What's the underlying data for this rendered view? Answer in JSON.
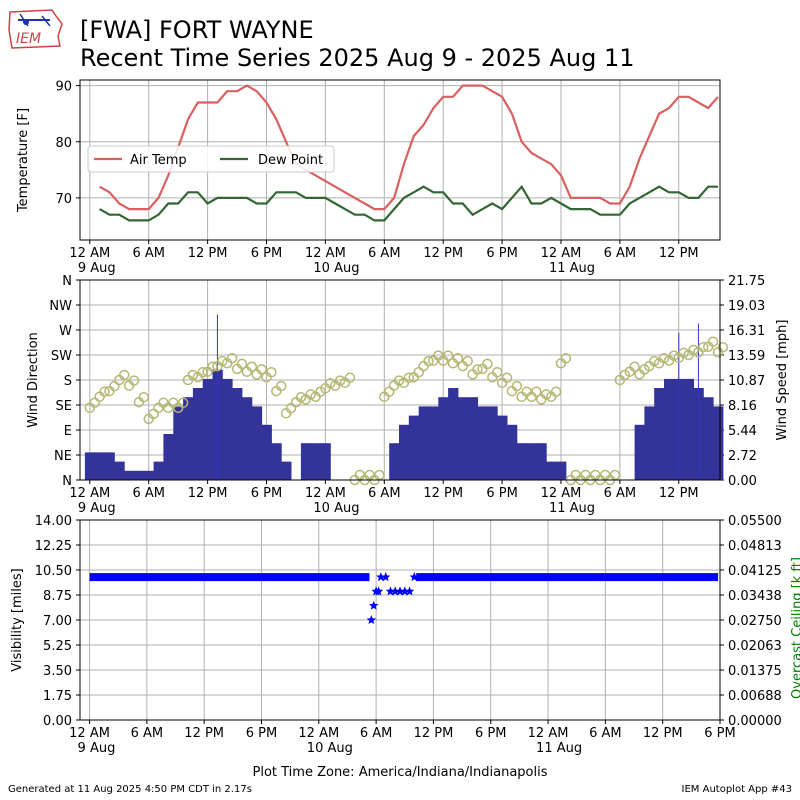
{
  "header": {
    "logo_text": "IEM",
    "title_line1": "[FWA] FORT WAYNE",
    "title_line2": "Recent Time Series 2025 Aug 9 - 2025 Aug 11"
  },
  "footer": {
    "generated": "Generated at 11 Aug 2025 4:50 PM CDT in 2.17s",
    "app": "IEM Autoplot App #43"
  },
  "xaxis_top": {
    "range_hours": [
      -1,
      64.2
    ],
    "ticks": [
      {
        "h": 0,
        "label": "12 AM",
        "sub": "9 Aug"
      },
      {
        "h": 6,
        "label": "6 AM",
        "sub": ""
      },
      {
        "h": 12,
        "label": "12 PM",
        "sub": ""
      },
      {
        "h": 18,
        "label": "6 PM",
        "sub": ""
      },
      {
        "h": 24,
        "label": "12 AM",
        "sub": "10 Aug"
      },
      {
        "h": 30,
        "label": "6 AM",
        "sub": ""
      },
      {
        "h": 36,
        "label": "12 PM",
        "sub": ""
      },
      {
        "h": 42,
        "label": "6 PM",
        "sub": ""
      },
      {
        "h": 48,
        "label": "12 AM",
        "sub": "11 Aug"
      },
      {
        "h": 54,
        "label": "6 AM",
        "sub": ""
      },
      {
        "h": 60,
        "label": "12 PM",
        "sub": ""
      }
    ]
  },
  "xaxis_bottom": {
    "range_hours": [
      -1,
      66
    ],
    "xlabel": "Plot Time Zone: America/Indiana/Indianapolis",
    "ticks": [
      {
        "h": 0,
        "label": "12 AM",
        "sub": "9 Aug"
      },
      {
        "h": 6,
        "label": "6 AM",
        "sub": ""
      },
      {
        "h": 12,
        "label": "12 PM",
        "sub": ""
      },
      {
        "h": 18,
        "label": "6 PM",
        "sub": ""
      },
      {
        "h": 24,
        "label": "12 AM",
        "sub": "10 Aug"
      },
      {
        "h": 30,
        "label": "6 AM",
        "sub": ""
      },
      {
        "h": 36,
        "label": "12 PM",
        "sub": ""
      },
      {
        "h": 42,
        "label": "6 PM",
        "sub": ""
      },
      {
        "h": 48,
        "label": "12 AM",
        "sub": "11 Aug"
      },
      {
        "h": 54,
        "label": "6 AM",
        "sub": ""
      },
      {
        "h": 60,
        "label": "12 PM",
        "sub": ""
      },
      {
        "h": 66,
        "label": "6 PM",
        "sub": ""
      }
    ]
  },
  "chart_data": [
    {
      "type": "line",
      "ylabel": "Temperature [F]",
      "ylim": [
        62.5,
        91
      ],
      "yticks": [
        70,
        80,
        90
      ],
      "grid": true,
      "legend_position": "center-left",
      "series": [
        {
          "name": "Air Temp",
          "color": "#d9605f",
          "x": [
            1,
            2,
            3,
            4,
            5,
            6,
            7,
            8,
            9,
            10,
            11,
            12,
            13,
            14,
            15,
            16,
            17,
            18,
            19,
            20,
            21,
            22,
            23,
            24,
            25,
            26,
            27,
            28,
            29,
            30,
            31,
            32,
            33,
            34,
            35,
            36,
            37,
            38,
            39,
            40,
            41,
            42,
            43,
            44,
            45,
            46,
            47,
            48,
            49,
            50,
            51,
            52,
            53,
            54,
            55,
            56,
            57,
            58,
            59,
            60,
            61,
            62,
            63,
            64
          ],
          "y": [
            72,
            71,
            69,
            68,
            68,
            68,
            70,
            74,
            79,
            84,
            87,
            87,
            87,
            89,
            89,
            90,
            89,
            87,
            84,
            80,
            76,
            75,
            74,
            73,
            72,
            71,
            70,
            69,
            68,
            68,
            70,
            76,
            81,
            83,
            86,
            88,
            88,
            90,
            90,
            90,
            89,
            88,
            85,
            80,
            78,
            77,
            76,
            74,
            70,
            70,
            70,
            70,
            69,
            69,
            72,
            77,
            81,
            85,
            86,
            88,
            88,
            87,
            86,
            88
          ]
        },
        {
          "name": "Dew Point",
          "color": "#336633",
          "x": [
            1,
            2,
            3,
            4,
            5,
            6,
            7,
            8,
            9,
            10,
            11,
            12,
            13,
            14,
            15,
            16,
            17,
            18,
            19,
            20,
            21,
            22,
            23,
            24,
            25,
            26,
            27,
            28,
            29,
            30,
            31,
            32,
            33,
            34,
            35,
            36,
            37,
            38,
            39,
            40,
            41,
            42,
            43,
            44,
            45,
            46,
            47,
            48,
            49,
            50,
            51,
            52,
            53,
            54,
            55,
            56,
            57,
            58,
            59,
            60,
            61,
            62,
            63,
            64
          ],
          "y": [
            68,
            67,
            67,
            66,
            66,
            66,
            67,
            69,
            69,
            71,
            71,
            69,
            70,
            70,
            70,
            70,
            69,
            69,
            71,
            71,
            71,
            70,
            70,
            70,
            69,
            68,
            67,
            67,
            66,
            66,
            68,
            70,
            71,
            72,
            71,
            71,
            69,
            69,
            67,
            68,
            69,
            68,
            70,
            72,
            69,
            69,
            70,
            69,
            68,
            68,
            68,
            67,
            67,
            67,
            69,
            70,
            71,
            72,
            71,
            71,
            70,
            70,
            72,
            72
          ]
        }
      ]
    },
    {
      "type": "bar",
      "ylabel": "Wind Direction",
      "y2label": "Wind Speed [mph]",
      "ylim": [
        0,
        360
      ],
      "yticks": [
        "N",
        "NE",
        "E",
        "SE",
        "S",
        "SW",
        "W",
        "NW",
        "N"
      ],
      "y2lim": [
        0,
        21.75
      ],
      "y2ticks": [
        "0.00",
        "2.72",
        "5.44",
        "8.16",
        "10.87",
        "13.59",
        "16.31",
        "19.03",
        "21.75"
      ],
      "grid": true,
      "direction_color": "#b5b873",
      "speed_color": "#333399",
      "gust_color": "#3333cc",
      "x": [
        0,
        1,
        2,
        3,
        4,
        5,
        6,
        7,
        8,
        9,
        10,
        11,
        12,
        13,
        14,
        15,
        16,
        17,
        18,
        19,
        20,
        21,
        22,
        23,
        24,
        25,
        26,
        27,
        28,
        29,
        30,
        31,
        32,
        33,
        34,
        35,
        36,
        37,
        38,
        39,
        40,
        41,
        42,
        43,
        44,
        45,
        46,
        47,
        48,
        49,
        50,
        51,
        52,
        53,
        54,
        55,
        56,
        57,
        58,
        59,
        60,
        61,
        62,
        63,
        64
      ],
      "speed_mph": [
        3,
        3,
        3,
        2,
        1,
        1,
        1,
        2,
        5,
        8,
        9,
        10,
        11,
        12,
        11,
        10,
        9,
        8,
        6,
        4,
        2,
        0,
        4,
        4,
        4,
        0,
        0,
        0,
        0,
        0,
        0,
        4,
        6,
        7,
        8,
        8,
        9,
        10,
        9,
        9,
        8,
        8,
        7,
        6,
        4,
        4,
        4,
        2,
        2,
        0,
        0,
        0,
        0,
        0,
        0,
        0,
        6,
        8,
        10,
        11,
        11,
        11,
        10,
        9,
        8
      ],
      "gust_mph": [
        0,
        0,
        0,
        0,
        0,
        0,
        0,
        0,
        0,
        0,
        0,
        0,
        0,
        18,
        0,
        0,
        0,
        0,
        0,
        0,
        0,
        0,
        0,
        0,
        0,
        0,
        0,
        0,
        0,
        0,
        0,
        0,
        0,
        0,
        0,
        0,
        0,
        0,
        0,
        0,
        0,
        0,
        0,
        0,
        0,
        0,
        0,
        0,
        0,
        0,
        0,
        0,
        0,
        0,
        0,
        0,
        0,
        0,
        0,
        0,
        16,
        0,
        17,
        0,
        0
      ],
      "direction_deg": [
        130,
        150,
        160,
        180,
        170,
        140,
        110,
        130,
        130,
        130,
        180,
        185,
        195,
        205,
        210,
        200,
        195,
        190,
        185,
        160,
        120,
        140,
        145,
        150,
        165,
        170,
        175,
        0,
        0,
        0,
        150,
        170,
        175,
        185,
        205,
        215,
        215,
        210,
        205,
        190,
        200,
        185,
        175,
        160,
        150,
        150,
        145,
        150,
        210,
        0,
        0,
        0,
        0,
        0,
        180,
        195,
        190,
        205,
        210,
        215,
        220,
        225,
        230,
        240,
        230
      ]
    },
    {
      "type": "scatter",
      "ylabel": "Visibility [miles]",
      "y2label": "Overcast Ceiling [k ft]",
      "ylim": [
        0,
        14
      ],
      "yticks": [
        "0.00",
        "1.75",
        "3.50",
        "5.25",
        "7.00",
        "8.75",
        "10.50",
        "12.25",
        "14.00"
      ],
      "y2lim": [
        0,
        0.055
      ],
      "y2ticks": [
        "0.00000",
        "0.00688",
        "0.01375",
        "0.02063",
        "0.02750",
        "0.03438",
        "0.04125",
        "0.04813",
        "0.05500"
      ],
      "grid": true,
      "marker_color": "#0000ff",
      "baseline_visibility": 10,
      "x": [
        29.5,
        29.75,
        30,
        30.25,
        30.5,
        31,
        31.5,
        32,
        32.5,
        33,
        33.5,
        34
      ],
      "y": [
        7,
        8,
        9,
        9,
        10,
        10,
        9,
        9,
        9,
        9,
        9,
        10
      ]
    }
  ]
}
